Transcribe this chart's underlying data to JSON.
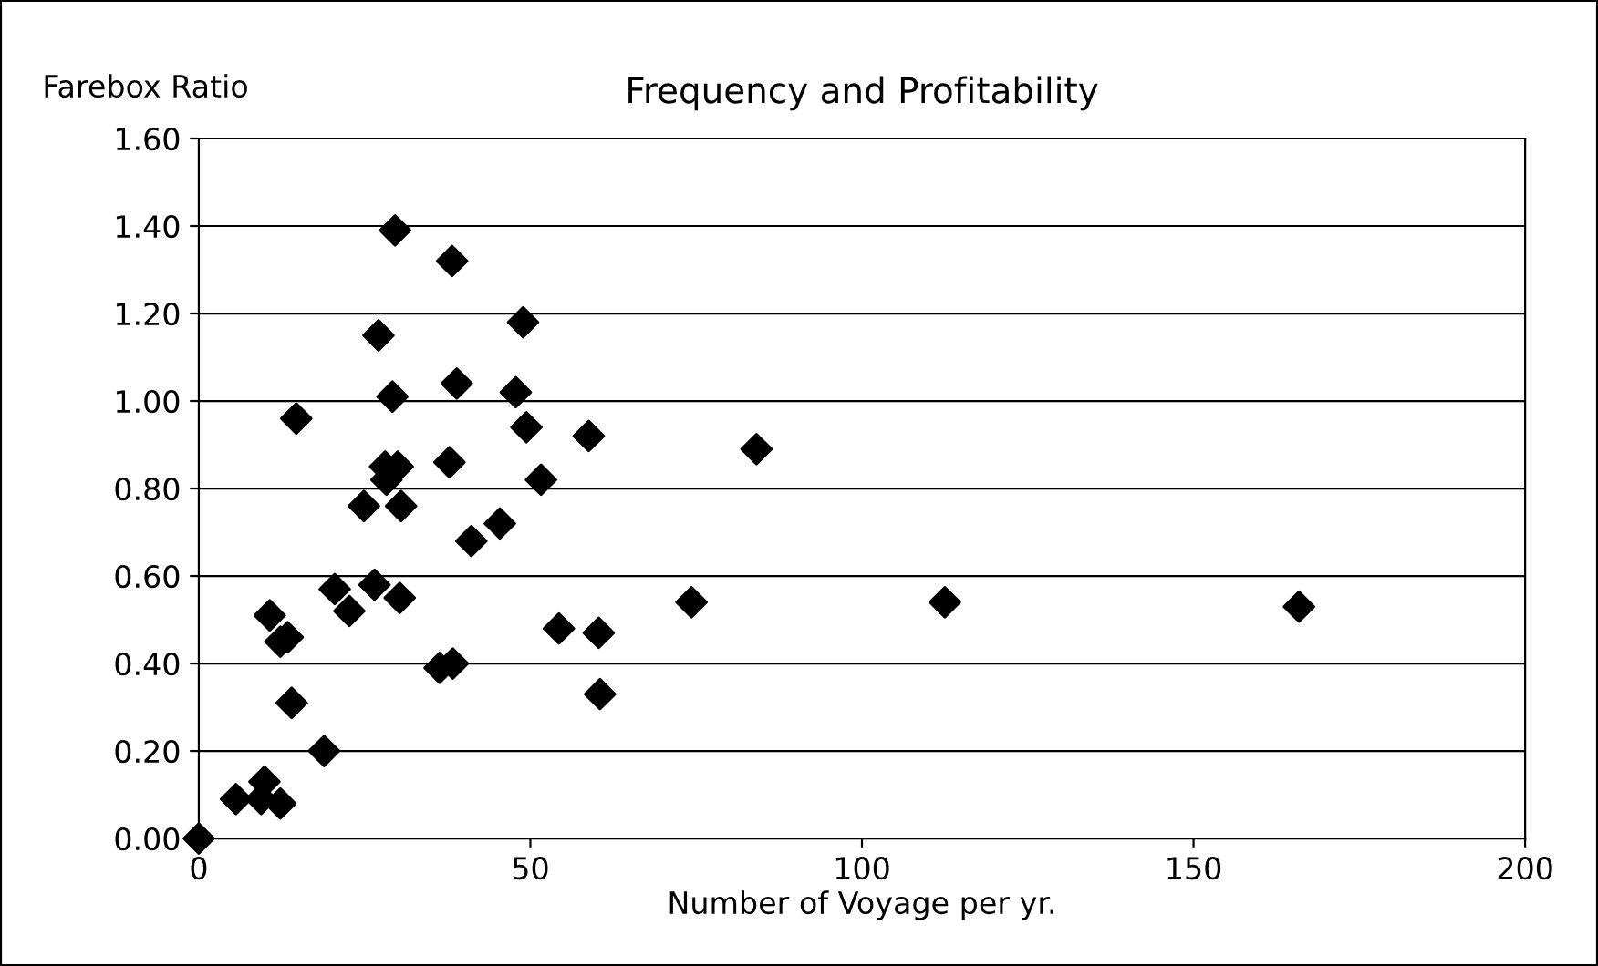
{
  "chart_data": {
    "type": "scatter",
    "title": "Frequency and Profitability",
    "xlabel": "Number of Voyage per yr.",
    "ylabel": "Farebox Ratio",
    "series": [
      {
        "color": "#000000",
        "x": [
          0,
          5.6,
          9.4,
          9.9,
          12.3,
          18.9,
          14.0,
          60.5,
          36.3,
          38.3,
          12.3,
          13.4,
          10.7,
          22.7,
          30.3,
          26.5,
          20.5,
          54.3,
          60.3,
          41.1,
          45.4,
          24.9,
          30.5,
          28.3,
          51.6,
          28.1,
          30.0,
          37.8,
          58.8,
          49.4,
          14.7,
          47.8,
          29.2,
          38.9,
          27.1,
          48.9,
          38.2,
          29.6,
          84.1,
          74.3,
          112.5,
          165.9
        ],
        "values": [
          0,
          0.09,
          0.09,
          0.13,
          0.08,
          0.2,
          0.31,
          0.33,
          0.39,
          0.4,
          0.45,
          0.46,
          0.51,
          0.52,
          0.55,
          0.58,
          0.57,
          0.48,
          0.47,
          0.68,
          0.72,
          0.76,
          0.76,
          0.82,
          0.82,
          0.85,
          0.85,
          0.86,
          0.92,
          0.94,
          0.96,
          1.02,
          1.01,
          1.04,
          1.15,
          1.18,
          1.32,
          1.39,
          0.89,
          0.54,
          0.54,
          0.53
        ]
      }
    ],
    "marker": "diamond",
    "grid": "y",
    "xlim": [
      0,
      200
    ],
    "xticks": [
      0,
      50,
      100,
      150,
      200
    ],
    "ylim": [
      0,
      1.6
    ],
    "yticks": [
      {
        "value": 0,
        "label": "0.00"
      },
      {
        "value": 0.2,
        "label": "0.20"
      },
      {
        "value": 0.4,
        "label": "0.40"
      },
      {
        "value": 0.6,
        "label": "0.60"
      },
      {
        "value": 0.8,
        "label": "0.80"
      },
      {
        "value": 1.0,
        "label": "1.00"
      },
      {
        "value": 1.2,
        "label": "1.20"
      },
      {
        "value": 1.4,
        "label": "1.40"
      },
      {
        "value": 1.6,
        "label": "1.60"
      }
    ]
  }
}
